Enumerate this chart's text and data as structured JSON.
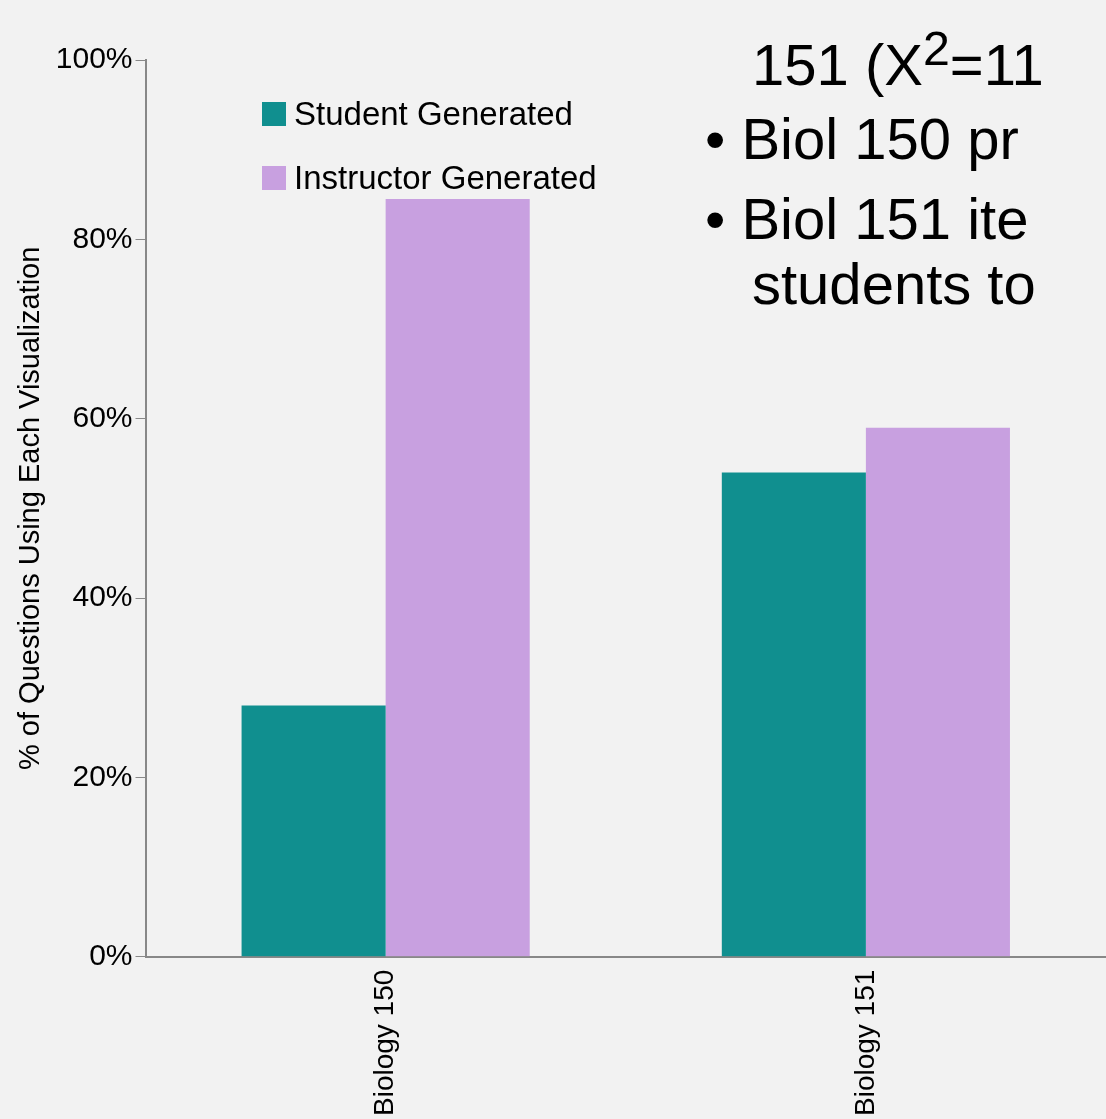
{
  "chart_data": {
    "type": "bar",
    "ylabel": "% of Questions Using Each Visualization",
    "categories": [
      "Biology 150",
      "Biology 151"
    ],
    "series": [
      {
        "name": "Student Generated",
        "color": "#108f8f",
        "values": [
          28,
          54
        ]
      },
      {
        "name": "Instructor Generated",
        "color": "#c8a0e0",
        "values": [
          84.5,
          59
        ]
      }
    ],
    "ylim": [
      0,
      100
    ],
    "yticks": [
      {
        "value": 0,
        "label": "0%"
      },
      {
        "value": 20,
        "label": "20%"
      },
      {
        "value": 40,
        "label": "40%"
      },
      {
        "value": 60,
        "label": "60%"
      },
      {
        "value": 80,
        "label": "80%"
      },
      {
        "value": 100,
        "label": "100%"
      }
    ],
    "grid": false,
    "legend": "top left",
    "annotations": [
      "151 (X$^{2}$=11",
      "• Biol 150 pr",
      "• Biol 151 ite",
      "students to"
    ]
  }
}
